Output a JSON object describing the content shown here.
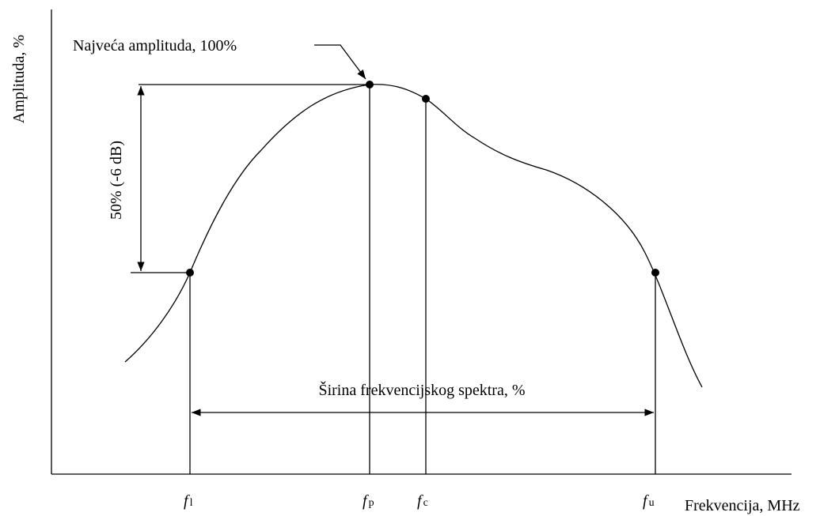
{
  "diagram": {
    "y_axis_label": "Amplituda, %",
    "x_axis_label": "Frekvencija, MHz",
    "peak_label": "Najveća amplituda, 100%",
    "half_label": "50%  (-6 dB)",
    "bandwidth_label": "Širina frekvencijskog spektra, %",
    "markers": [
      {
        "symbol": "f",
        "subscript": "l"
      },
      {
        "symbol": "f",
        "subscript": "p"
      },
      {
        "symbol": "f",
        "subscript": "c"
      },
      {
        "symbol": "f",
        "subscript": "u"
      }
    ]
  }
}
